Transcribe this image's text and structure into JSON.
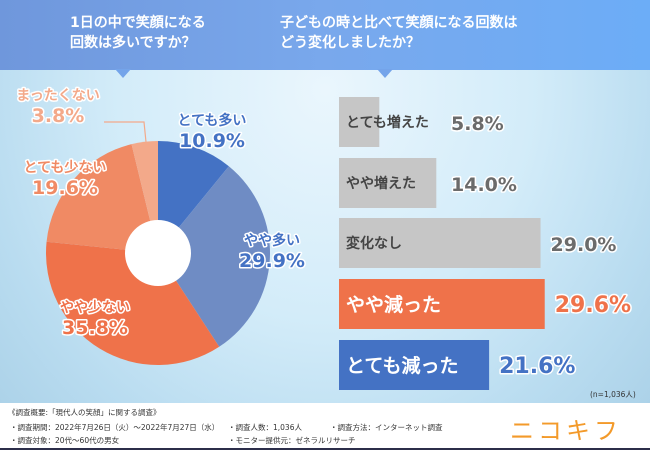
{
  "header": {
    "q1": [
      "1日の中で笑顔になる",
      "回数は多いですか？"
    ],
    "q2": [
      "子どもの時と比べて笑顔になる回数は",
      "どう変化しましたか？"
    ]
  },
  "colors": {
    "header": "#74a4ea",
    "blue_dark": "#4472c4",
    "blue_light": "#6f8cc4",
    "orange": "#ef724a",
    "orange_mid": "#f08a64",
    "orange_light": "#f3a98a",
    "gray": "#c6c6c6",
    "gray_text": "#6b6b6b"
  },
  "chart_data": [
    {
      "type": "pie",
      "donut": true,
      "categories": [
        "とても多い",
        "やや多い",
        "やや少ない",
        "とても少ない",
        "まったくない"
      ],
      "values": [
        10.9,
        29.9,
        35.8,
        19.6,
        3.8
      ],
      "labels": [
        "10.9%",
        "29.9%",
        "35.8%",
        "19.6%",
        "3.8%"
      ],
      "colors": [
        "#4472c4",
        "#6f8cc4",
        "#ef724a",
        "#f08a64",
        "#f3a98a"
      ]
    },
    {
      "type": "bar",
      "orientation": "horizontal",
      "categories": [
        "とても増えた",
        "やや増えた",
        "変化なし",
        "やや減った",
        "とても減った"
      ],
      "values": [
        5.8,
        14.0,
        29.0,
        29.6,
        21.6
      ],
      "labels": [
        "5.8%",
        "14.0%",
        "29.0%",
        "29.6%",
        "21.6%"
      ],
      "colors": [
        "#c6c6c6",
        "#c6c6c6",
        "#c6c6c6",
        "#ef724a",
        "#4472c4"
      ],
      "label_colors": [
        "#444",
        "#444",
        "#444",
        "#fff",
        "#fff"
      ],
      "value_colors": [
        "#6b6b6b",
        "#6b6b6b",
        "#6b6b6b",
        "#ef724a",
        "#4472c4"
      ],
      "note": "(n=1,036人)"
    }
  ],
  "footer": {
    "title": "《調査概要:「現代人の笑顔」に関する調査》",
    "period": "・調査期間：2022年7月26日（火）～2022年7月27日（水）",
    "count": "・調査人数：1,036人",
    "method": "・調査方法：インターネット調査",
    "target": "・調査対象：20代～60代の男女",
    "provider": "・モニター提供元：ゼネラルリサーチ",
    "logo": "ニコキフ"
  }
}
